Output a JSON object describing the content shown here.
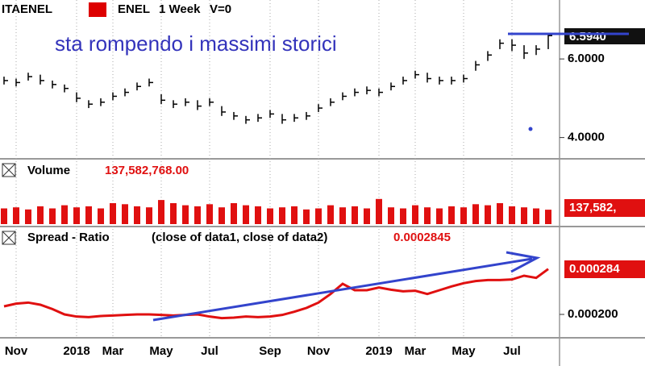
{
  "chart_data": [
    {
      "type": "ohlc",
      "symbol": "ITAENEL",
      "name": "ENEL",
      "interval": "1 Week",
      "volume_flag": "V=0",
      "annotation": "sta rompendo i massimi storici",
      "last_label": "6.5940",
      "high": [
        5.55,
        5.5,
        5.65,
        5.6,
        5.45,
        5.35,
        5.15,
        4.95,
        5.0,
        5.15,
        5.25,
        5.4,
        5.5,
        5.1,
        4.95,
        5.0,
        4.95,
        5.0,
        4.8,
        4.65,
        4.55,
        4.6,
        4.7,
        4.6,
        4.6,
        4.65,
        4.85,
        5.0,
        5.15,
        5.25,
        5.3,
        5.25,
        5.4,
        5.55,
        5.7,
        5.65,
        5.55,
        5.55,
        5.6,
        5.95,
        6.2,
        6.5,
        6.5,
        6.35,
        6.35,
        6.65
      ],
      "low": [
        5.35,
        5.3,
        5.45,
        5.35,
        5.25,
        5.15,
        4.9,
        4.75,
        4.8,
        4.95,
        5.05,
        5.2,
        5.3,
        4.85,
        4.75,
        4.8,
        4.7,
        4.8,
        4.55,
        4.45,
        4.35,
        4.4,
        4.5,
        4.35,
        4.4,
        4.45,
        4.65,
        4.8,
        4.95,
        5.05,
        5.1,
        5.05,
        5.2,
        5.35,
        5.5,
        5.4,
        5.35,
        5.35,
        5.4,
        5.7,
        5.95,
        6.25,
        6.2,
        6.0,
        6.1,
        6.25
      ],
      "close": [
        5.45,
        5.4,
        5.55,
        5.45,
        5.35,
        5.25,
        5.0,
        4.85,
        4.9,
        5.05,
        5.15,
        5.3,
        5.4,
        4.95,
        4.85,
        4.9,
        4.8,
        4.9,
        4.65,
        4.55,
        4.45,
        4.5,
        4.6,
        4.45,
        4.5,
        4.55,
        4.75,
        4.9,
        5.05,
        5.15,
        5.2,
        5.15,
        5.3,
        5.45,
        5.6,
        5.5,
        5.45,
        5.45,
        5.5,
        5.85,
        6.1,
        6.4,
        6.35,
        6.15,
        6.25,
        6.594
      ],
      "color": "#000000",
      "ylim": [
        3.5,
        7.5
      ],
      "yticks": [
        {
          "value": 6,
          "label": "6.0000"
        },
        {
          "value": 4,
          "label": "4.0000"
        }
      ]
    },
    {
      "type": "volume",
      "title": "Volume",
      "last_value_label": "137,582,768.00",
      "last_label": "137,582,",
      "values": [
        150000000,
        160000000,
        140000000,
        170000000,
        150000000,
        180000000,
        160000000,
        170000000,
        150000000,
        200000000,
        190000000,
        170000000,
        160000000,
        230000000,
        200000000,
        180000000,
        170000000,
        190000000,
        160000000,
        200000000,
        180000000,
        170000000,
        150000000,
        160000000,
        170000000,
        140000000,
        150000000,
        180000000,
        160000000,
        170000000,
        150000000,
        240000000,
        160000000,
        150000000,
        180000000,
        160000000,
        150000000,
        170000000,
        160000000,
        190000000,
        180000000,
        200000000,
        170000000,
        160000000,
        150000000,
        137582768
      ],
      "color": "#e01010",
      "ylim": [
        0,
        600000000
      ]
    },
    {
      "type": "line",
      "title": "Spread - Ratio",
      "subtitle": "(close of data1,  close of data2)",
      "last_label": "0.000284",
      "categories": [
        null,
        "Nov",
        null,
        null,
        null,
        null,
        "2018",
        null,
        null,
        "Mar",
        null,
        null,
        null,
        "May",
        null,
        null,
        null,
        "Jul",
        null,
        null,
        null,
        null,
        "Sep",
        null,
        null,
        null,
        "Nov",
        null,
        null,
        null,
        null,
        "2019",
        null,
        null,
        "Mar",
        null,
        null,
        null,
        "May",
        null,
        null,
        null,
        "Jul",
        null,
        null,
        null
      ],
      "values": [
        0.000215,
        0.00022,
        0.000222,
        0.000218,
        0.00021,
        0.0002,
        0.000196,
        0.000195,
        0.000197,
        0.000198,
        0.000199,
        0.0002,
        0.0002,
        0.000199,
        0.000198,
        0.000199,
        0.0002,
        0.000196,
        0.000193,
        0.000194,
        0.000196,
        0.000195,
        0.000196,
        0.000199,
        0.000205,
        0.000212,
        0.000222,
        0.000238,
        0.000257,
        0.000245,
        0.000245,
        0.00025,
        0.000246,
        0.000243,
        0.000244,
        0.000238,
        0.000245,
        0.000252,
        0.000258,
        0.000262,
        0.000264,
        0.000264,
        0.000265,
        0.000272,
        0.000268,
        0.0002845
      ],
      "color": "#e01010",
      "ylim": [
        0.000158,
        0.0003575
      ],
      "yticks": [
        {
          "value": 0.0002,
          "label": "0.000200"
        }
      ]
    }
  ]
}
